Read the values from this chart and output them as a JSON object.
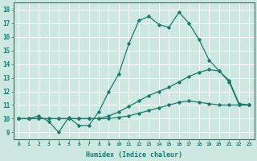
{
  "title": "",
  "xlabel": "Humidex (Indice chaleur)",
  "ylabel": "",
  "bg_color": "#cce8e0",
  "line_color": "#1a7a6e",
  "xlim": [
    -0.5,
    23.5
  ],
  "ylim": [
    8.5,
    18.5
  ],
  "xticks": [
    0,
    1,
    2,
    3,
    4,
    5,
    6,
    7,
    8,
    9,
    10,
    11,
    12,
    13,
    14,
    15,
    16,
    17,
    18,
    19,
    20,
    21,
    22,
    23
  ],
  "yticks": [
    9,
    10,
    11,
    12,
    13,
    14,
    15,
    16,
    17,
    18
  ],
  "series": [
    {
      "x": [
        0,
        1,
        2,
        3,
        4,
        5,
        6,
        7,
        8,
        9,
        10,
        11,
        12,
        13,
        14,
        15,
        16,
        17,
        18,
        19,
        20,
        21,
        22,
        23
      ],
      "y": [
        10,
        10,
        10.2,
        9.8,
        9,
        10.1,
        9.5,
        9.5,
        10.5,
        12,
        13.3,
        15.5,
        17.2,
        17.5,
        16.9,
        16.7,
        17.8,
        17.0,
        15.8,
        14.3,
        13.5,
        12.7,
        11,
        11
      ]
    },
    {
      "x": [
        0,
        1,
        2,
        3,
        4,
        5,
        6,
        7,
        8,
        9,
        10,
        11,
        12,
        13,
        14,
        15,
        16,
        17,
        18,
        19,
        20,
        21,
        22,
        23
      ],
      "y": [
        10,
        10,
        10,
        10,
        10,
        10,
        10,
        10,
        10,
        10.2,
        10.5,
        10.9,
        11.3,
        11.7,
        12.0,
        12.3,
        12.7,
        13.1,
        13.4,
        13.6,
        13.5,
        12.8,
        11.1,
        11
      ]
    },
    {
      "x": [
        0,
        1,
        2,
        3,
        4,
        5,
        6,
        7,
        8,
        9,
        10,
        11,
        12,
        13,
        14,
        15,
        16,
        17,
        18,
        19,
        20,
        21,
        22,
        23
      ],
      "y": [
        10,
        10,
        10,
        10,
        10,
        10,
        10,
        10,
        10,
        10,
        10.1,
        10.2,
        10.4,
        10.6,
        10.8,
        11.0,
        11.2,
        11.3,
        11.2,
        11.1,
        11.0,
        11.0,
        11.0,
        11.0
      ]
    }
  ]
}
